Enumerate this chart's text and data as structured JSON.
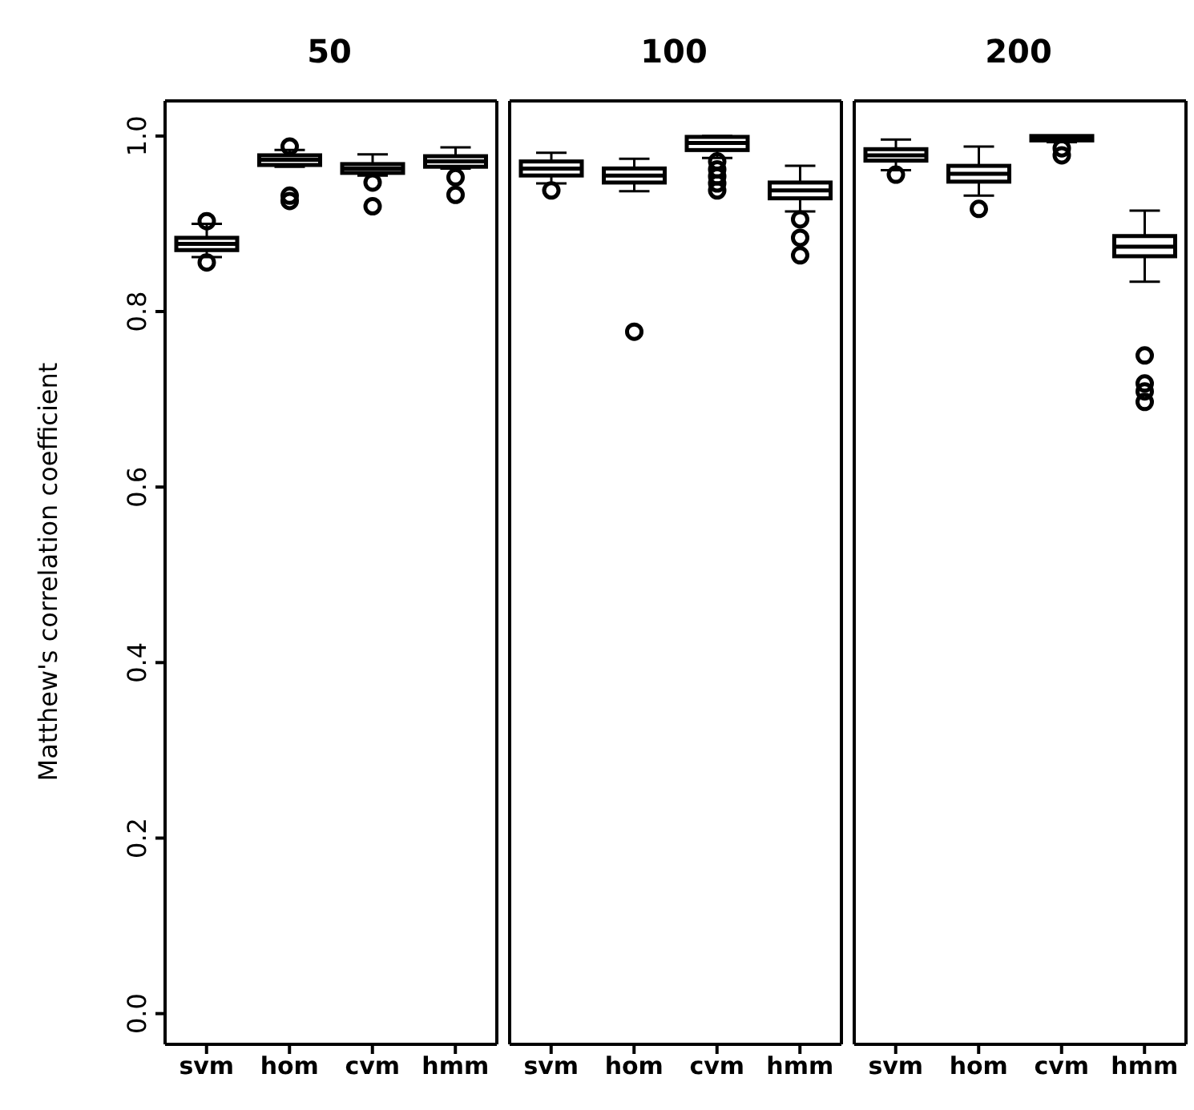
{
  "chart_data": [
    {
      "type": "box",
      "title": "50",
      "ylabel": "Matthew's correlation coefficient",
      "categories": [
        "svm",
        "hom",
        "cvm",
        "hmm"
      ],
      "color": "#000000",
      "ylim": [
        -0.035,
        1.04
      ],
      "yticks": [
        {
          "value": 0,
          "label": "0.0"
        },
        {
          "value": 0.2,
          "label": "0.2"
        },
        {
          "value": 0.4,
          "label": "0.4"
        },
        {
          "value": 0.6,
          "label": "0.6"
        },
        {
          "value": 0.8,
          "label": "0.8"
        },
        {
          "value": 1,
          "label": "1.0"
        }
      ],
      "grid": false,
      "boxes": [
        {
          "low": 0.862,
          "q1": 0.87,
          "median": 0.877,
          "q3": 0.884,
          "high": 0.9,
          "outliers": [
            0.903,
            0.856
          ]
        },
        {
          "low": 0.965,
          "q1": 0.967,
          "median": 0.973,
          "q3": 0.978,
          "high": 0.984,
          "outliers": [
            0.988,
            0.932,
            0.926
          ]
        },
        {
          "low": 0.955,
          "q1": 0.958,
          "median": 0.963,
          "q3": 0.968,
          "high": 0.979,
          "outliers": [
            0.947,
            0.92
          ]
        },
        {
          "low": 0.963,
          "q1": 0.965,
          "median": 0.971,
          "q3": 0.977,
          "high": 0.987,
          "outliers": [
            0.953,
            0.933
          ]
        }
      ]
    },
    {
      "type": "box",
      "title": "100",
      "categories": [
        "svm",
        "hom",
        "cvm",
        "hmm"
      ],
      "color": "#000000",
      "ylim": [
        -0.035,
        1.04
      ],
      "tick_labels": "x",
      "grid": false,
      "boxes": [
        {
          "low": 0.946,
          "q1": 0.955,
          "median": 0.963,
          "q3": 0.971,
          "high": 0.981,
          "outliers": [
            0.938
          ]
        },
        {
          "low": 0.937,
          "q1": 0.947,
          "median": 0.955,
          "q3": 0.963,
          "high": 0.974,
          "outliers": [
            0.777
          ]
        },
        {
          "low": 0.975,
          "q1": 0.984,
          "median": 0.992,
          "q3": 0.999,
          "high": 1.0,
          "outliers": [
            0.971,
            0.962,
            0.954,
            0.946,
            0.938
          ]
        },
        {
          "low": 0.914,
          "q1": 0.929,
          "median": 0.938,
          "q3": 0.947,
          "high": 0.966,
          "outliers": [
            0.905,
            0.884,
            0.864
          ]
        }
      ]
    },
    {
      "type": "box",
      "title": "200",
      "categories": [
        "svm",
        "hom",
        "cvm",
        "hmm"
      ],
      "color": "#000000",
      "ylim": [
        -0.035,
        1.04
      ],
      "tick_labels": "x",
      "grid": false,
      "boxes": [
        {
          "low": 0.961,
          "q1": 0.972,
          "median": 0.978,
          "q3": 0.985,
          "high": 0.996,
          "outliers": [
            0.956
          ]
        },
        {
          "low": 0.932,
          "q1": 0.948,
          "median": 0.957,
          "q3": 0.966,
          "high": 0.988,
          "outliers": [
            0.917
          ]
        },
        {
          "low": 0.993,
          "q1": 0.995,
          "median": 0.998,
          "q3": 1.0,
          "high": 1.0,
          "outliers": [
            0.986,
            0.978
          ]
        },
        {
          "low": 0.834,
          "q1": 0.863,
          "median": 0.874,
          "q3": 0.886,
          "high": 0.915,
          "outliers": [
            0.75,
            0.718,
            0.709,
            0.697
          ]
        }
      ]
    }
  ]
}
